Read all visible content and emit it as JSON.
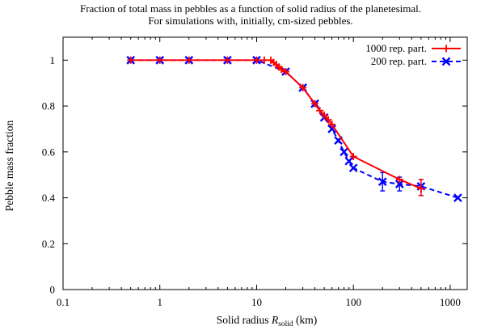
{
  "chart_data": {
    "type": "line",
    "title_lines": [
      "Fraction of total mass in pebbles as a function of solid radius of the planetesimal.",
      "For simulations with, initially, cm-sized pebbles."
    ],
    "xlabel": {
      "prefix": "Solid radius ",
      "symbol": "R",
      "subscript": "solid",
      "suffix": " (km)"
    },
    "ylabel": "Pebble mass fraction",
    "xscale": "log",
    "xlim": [
      0.1,
      1500
    ],
    "ylim": [
      0,
      1.1
    ],
    "xticks": [
      {
        "value": 0.1,
        "label": "0.1"
      },
      {
        "value": 1,
        "label": "1"
      },
      {
        "value": 10,
        "label": "10"
      },
      {
        "value": 100,
        "label": "100"
      },
      {
        "value": 1000,
        "label": "1000"
      }
    ],
    "yticks": [
      {
        "value": 0,
        "label": "0"
      },
      {
        "value": 0.2,
        "label": "0.2"
      },
      {
        "value": 0.4,
        "label": "0.4"
      },
      {
        "value": 0.6,
        "label": "0.6"
      },
      {
        "value": 0.8,
        "label": "0.8"
      },
      {
        "value": 1,
        "label": "1"
      }
    ],
    "legend_position": "top-right",
    "series": [
      {
        "name": "1000 rep. part.",
        "color": "#ff0000",
        "line": "solid",
        "marker": "plus",
        "points": [
          {
            "x": 0.5,
            "y": 1.0
          },
          {
            "x": 1,
            "y": 1.0
          },
          {
            "x": 2,
            "y": 1.0
          },
          {
            "x": 5,
            "y": 1.0
          },
          {
            "x": 10,
            "y": 1.0
          },
          {
            "x": 12,
            "y": 1.0
          },
          {
            "x": 14,
            "y": 1.0
          },
          {
            "x": 15,
            "y": 0.99
          },
          {
            "x": 16,
            "y": 0.98
          },
          {
            "x": 17,
            "y": 0.97
          },
          {
            "x": 18,
            "y": 0.96
          },
          {
            "x": 20,
            "y": 0.95
          },
          {
            "x": 30,
            "y": 0.88
          },
          {
            "x": 40,
            "y": 0.81
          },
          {
            "x": 45,
            "y": 0.78
          },
          {
            "x": 50,
            "y": 0.76
          },
          {
            "x": 55,
            "y": 0.74
          },
          {
            "x": 60,
            "y": 0.72
          },
          {
            "x": 100,
            "y": 0.58
          },
          {
            "x": 300,
            "y": 0.48
          },
          {
            "x": 500,
            "y": 0.44
          }
        ],
        "errorbars": [
          {
            "x": 500,
            "low": 0.41,
            "high": 0.48
          }
        ]
      },
      {
        "name": "200 rep. part.",
        "color": "#0000ff",
        "line": "dashed",
        "marker": "cross",
        "points": [
          {
            "x": 0.5,
            "y": 1.0
          },
          {
            "x": 1,
            "y": 1.0
          },
          {
            "x": 2,
            "y": 1.0
          },
          {
            "x": 5,
            "y": 1.0
          },
          {
            "x": 10,
            "y": 1.0
          },
          {
            "x": 20,
            "y": 0.95
          },
          {
            "x": 30,
            "y": 0.88
          },
          {
            "x": 40,
            "y": 0.81
          },
          {
            "x": 50,
            "y": 0.75
          },
          {
            "x": 60,
            "y": 0.7
          },
          {
            "x": 70,
            "y": 0.65
          },
          {
            "x": 80,
            "y": 0.6
          },
          {
            "x": 90,
            "y": 0.56
          },
          {
            "x": 100,
            "y": 0.53
          },
          {
            "x": 200,
            "y": 0.47
          },
          {
            "x": 300,
            "y": 0.46
          },
          {
            "x": 500,
            "y": 0.45
          },
          {
            "x": 1200,
            "y": 0.4
          }
        ],
        "errorbars": [
          {
            "x": 200,
            "low": 0.43,
            "high": 0.51
          },
          {
            "x": 300,
            "low": 0.43,
            "high": 0.49
          },
          {
            "x": 500,
            "low": 0.41,
            "high": 0.48
          }
        ]
      }
    ]
  }
}
